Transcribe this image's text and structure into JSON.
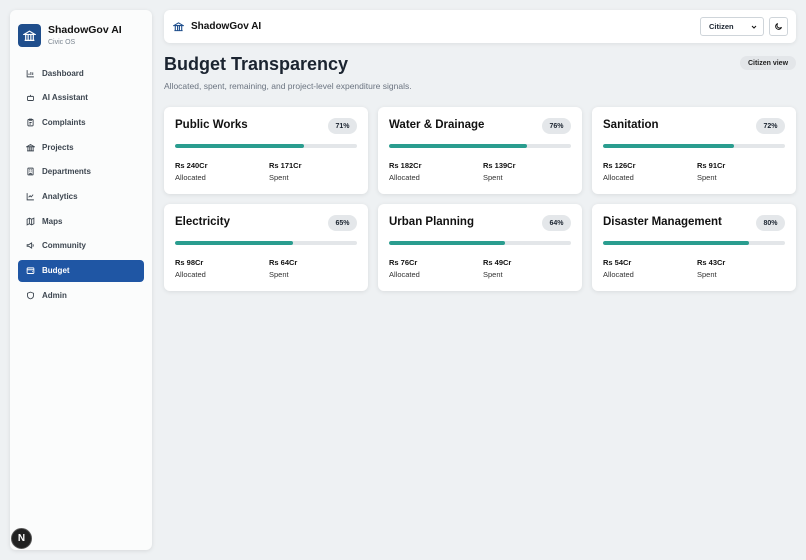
{
  "app": {
    "name": "ShadowGov AI",
    "subtitle": "Civic OS"
  },
  "sidebar": {
    "items": [
      {
        "label": "Dashboard",
        "icon": "bar-chart-icon"
      },
      {
        "label": "AI Assistant",
        "icon": "bot-icon"
      },
      {
        "label": "Complaints",
        "icon": "clipboard-icon"
      },
      {
        "label": "Projects",
        "icon": "landmark-icon"
      },
      {
        "label": "Departments",
        "icon": "building-icon"
      },
      {
        "label": "Analytics",
        "icon": "chart-icon"
      },
      {
        "label": "Maps",
        "icon": "map-icon"
      },
      {
        "label": "Community",
        "icon": "megaphone-icon"
      },
      {
        "label": "Budget",
        "icon": "wallet-icon",
        "active": true
      },
      {
        "label": "Admin",
        "icon": "shield-icon"
      }
    ]
  },
  "topbar": {
    "title": "ShadowGov AI",
    "role_selected": "Citizen",
    "theme_icon": "moon-icon"
  },
  "page": {
    "title": "Budget Transparency",
    "subtitle": "Allocated, spent, remaining, and project-level expenditure signals.",
    "view_badge": "Citizen view"
  },
  "labels": {
    "allocated": "Allocated",
    "spent": "Spent"
  },
  "departments": [
    {
      "name": "Public Works",
      "pct_label": "71%",
      "pct": 71,
      "allocated": "Rs 240Cr",
      "spent": "Rs 171Cr"
    },
    {
      "name": "Water & Drainage",
      "pct_label": "76%",
      "pct": 76,
      "allocated": "Rs 182Cr",
      "spent": "Rs 139Cr"
    },
    {
      "name": "Sanitation",
      "pct_label": "72%",
      "pct": 72,
      "allocated": "Rs 126Cr",
      "spent": "Rs 91Cr"
    },
    {
      "name": "Electricity",
      "pct_label": "65%",
      "pct": 65,
      "allocated": "Rs 98Cr",
      "spent": "Rs 64Cr"
    },
    {
      "name": "Urban Planning",
      "pct_label": "64%",
      "pct": 64,
      "allocated": "Rs 76Cr",
      "spent": "Rs 49Cr"
    },
    {
      "name": "Disaster Management",
      "pct_label": "80%",
      "pct": 80,
      "allocated": "Rs 54Cr",
      "spent": "Rs 43Cr"
    }
  ],
  "colors": {
    "accent": "#1f56a4",
    "progress": "#2a9d8f"
  },
  "footer_badge": "N"
}
